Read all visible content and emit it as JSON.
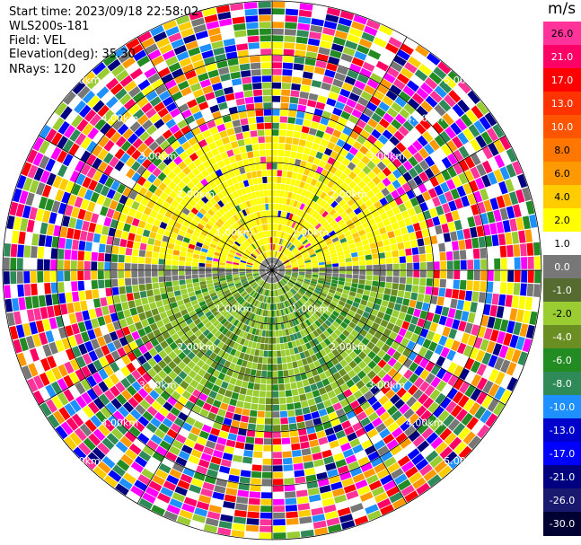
{
  "info": {
    "start_time": "Start time: 2023/09/18 22:58:02",
    "instrument": "WLS200s-181",
    "field": "Field: VEL",
    "elevation": "Elevation(deg): 35.30",
    "nrays": "NRays: 120"
  },
  "colorbar": {
    "unit": "m/s",
    "labels": [
      "26.0",
      "21.0",
      "17.0",
      "13.0",
      "10.0",
      "8.0",
      "6.0",
      "4.0",
      "2.0",
      "1.0",
      "0.0",
      "-1.0",
      "-2.0",
      "-4.0",
      "-6.0",
      "-8.0",
      "-10.0",
      "-13.0",
      "-17.0",
      "-21.0",
      "-26.0",
      "-30.0"
    ],
    "colors": [
      "#ff3399",
      "#ff0066",
      "#ff0000",
      "#ff3300",
      "#ff5500",
      "#ff7700",
      "#ff9900",
      "#ffcc00",
      "#ffff00",
      "#ffffff",
      "#777777",
      "#556b2f",
      "#9acd32",
      "#6b8e23",
      "#228b22",
      "#2e8b57",
      "#1e90ff",
      "#0000cd",
      "#0000ff",
      "#000080",
      "#191970",
      "#000033"
    ]
  },
  "range_labels": [
    "1.00km",
    "2.00km",
    "3.00km",
    "4.00km",
    "5.00km"
  ],
  "ppi": {
    "rays": 120,
    "gates": 40,
    "rings": 5,
    "spokes": 12
  }
}
